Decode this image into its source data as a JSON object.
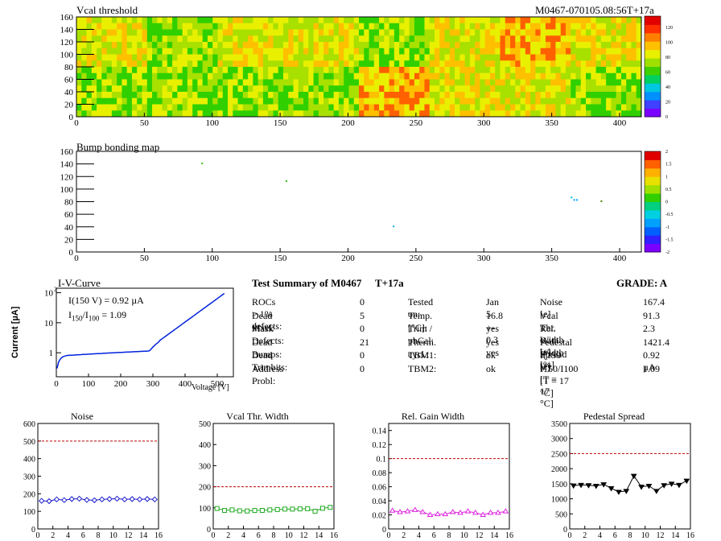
{
  "header": {
    "module_id": "M0467-070105.08:56T+17a"
  },
  "vcal_map": {
    "title": "Vcal threshold",
    "x_ticks": [
      0,
      50,
      100,
      150,
      200,
      250,
      300,
      350,
      400
    ],
    "y_ticks": [
      0,
      20,
      40,
      60,
      80,
      100,
      120,
      140,
      160
    ],
    "scale_ticks": [
      "0",
      "20",
      "40",
      "60",
      "80",
      "100",
      "120"
    ]
  },
  "bump_map": {
    "title": "Bump bonding map",
    "x_ticks": [
      0,
      50,
      100,
      150,
      200,
      250,
      300,
      350,
      400
    ],
    "y_ticks": [
      0,
      20,
      40,
      60,
      80,
      100,
      120,
      140,
      160
    ],
    "scale_ticks": [
      "-2",
      "-1.5",
      "-1",
      "-0.5",
      "0",
      "0.5",
      "1",
      "1.5",
      "2"
    ]
  },
  "iv": {
    "title": "I-V-Curve",
    "ylabel": "Current [µA]",
    "xlabel": "Voltage [V]",
    "note1": "I(150 V) = 0.92 µA",
    "note2_pre": "I",
    "note2_sub1": "150",
    "note2_mid": "/I",
    "note2_sub2": "100",
    "note2_post": " =  1.09",
    "x_ticks": [
      "0",
      "100",
      "200",
      "300",
      "400",
      "500"
    ]
  },
  "summary": {
    "title": "Test Summary of M0467",
    "tag": "T+17a",
    "grade": "GRADE:  A",
    "col1": [
      {
        "label": "ROCs > 1% defects:",
        "value": "0"
      },
      {
        "label": "Dead Pixel:",
        "value": "5"
      },
      {
        "label": "Mask Defects:",
        "value": "0"
      },
      {
        "label": "Dead Bumps:",
        "value": "21"
      },
      {
        "label": "Dead Trimbits:",
        "value": "0"
      },
      {
        "label": "Address Probl:",
        "value": "0"
      }
    ],
    "col2": [
      {
        "label": "Tested on:",
        "value": "Jan 5"
      },
      {
        "label": "Temp. [°C]:",
        "value": "16.8 +- 0.3"
      },
      {
        "label": "Trim / phCal:",
        "value": "yes / yes"
      },
      {
        "label": "Therm. cycl.:",
        "value": "yes"
      },
      {
        "label": "TBM1:",
        "value": "ok"
      },
      {
        "label": "TBM2:",
        "value": "ok"
      }
    ],
    "col3": [
      {
        "label": "Noise [e]",
        "value": "167.4"
      },
      {
        "label": "Vcal Thr. Width [e]",
        "value": "91.3"
      },
      {
        "label": "Rel. Gain Width [%]",
        "value": "2.3"
      },
      {
        "label": "Pedestal Spread [e]",
        "value": "1421.4"
      },
      {
        "label": "I(150 V)  [T = 17 °C]",
        "value": "0.92 µA"
      },
      {
        "label": "I150/I100  [T = 17 °C]",
        "value": "1.09"
      }
    ]
  },
  "chart_data": [
    {
      "type": "line",
      "title": "Noise",
      "x": [
        0,
        1,
        2,
        3,
        4,
        5,
        6,
        7,
        8,
        9,
        10,
        11,
        12,
        13,
        14,
        15
      ],
      "values": [
        160,
        158,
        168,
        164,
        170,
        172,
        165,
        163,
        168,
        170,
        172,
        168,
        170,
        168,
        170,
        168
      ],
      "ylim": [
        0,
        600
      ],
      "y_ticks": [
        0,
        100,
        200,
        300,
        400,
        500,
        600
      ],
      "threshold": 500,
      "color": "#1a1acc",
      "marker": "diamond"
    },
    {
      "type": "line",
      "title": "Vcal Thr. Width",
      "x": [
        0,
        1,
        2,
        3,
        4,
        5,
        6,
        7,
        8,
        9,
        10,
        11,
        12,
        13,
        14,
        15
      ],
      "values": [
        97,
        88,
        90,
        86,
        85,
        88,
        88,
        90,
        92,
        94,
        94,
        95,
        96,
        84,
        98,
        102
      ],
      "ylim": [
        0,
        500
      ],
      "y_ticks": [
        0,
        100,
        200,
        300,
        400,
        500
      ],
      "threshold": 200,
      "color": "#22aa22",
      "marker": "square"
    },
    {
      "type": "line",
      "title": "Rel. Gain Width",
      "x": [
        0,
        1,
        2,
        3,
        4,
        5,
        6,
        7,
        8,
        9,
        10,
        11,
        12,
        13,
        14,
        15
      ],
      "values": [
        0.026,
        0.024,
        0.025,
        0.027,
        0.024,
        0.02,
        0.021,
        0.021,
        0.024,
        0.023,
        0.025,
        0.023,
        0.02,
        0.023,
        0.023,
        0.025
      ],
      "ylim": [
        0,
        0.15
      ],
      "y_ticks": [
        "0",
        "0.02",
        "0.04",
        "0.06",
        "0.08",
        "0.1",
        "0.12",
        "0.14"
      ],
      "threshold": 0.1,
      "color": "#dd22dd",
      "marker": "triangle"
    },
    {
      "type": "line",
      "title": "Pedestal Spread",
      "x": [
        0,
        1,
        2,
        3,
        4,
        5,
        6,
        7,
        8,
        9,
        10,
        11,
        12,
        13,
        14,
        15
      ],
      "values": [
        1440,
        1460,
        1450,
        1430,
        1480,
        1350,
        1230,
        1260,
        1760,
        1400,
        1430,
        1260,
        1450,
        1500,
        1460,
        1600
      ],
      "ylim": [
        0,
        3500
      ],
      "y_ticks": [
        0,
        500,
        1000,
        1500,
        2000,
        2500,
        3000,
        3500
      ],
      "threshold": 2500,
      "color": "#000000",
      "marker": "triangle-down"
    }
  ]
}
